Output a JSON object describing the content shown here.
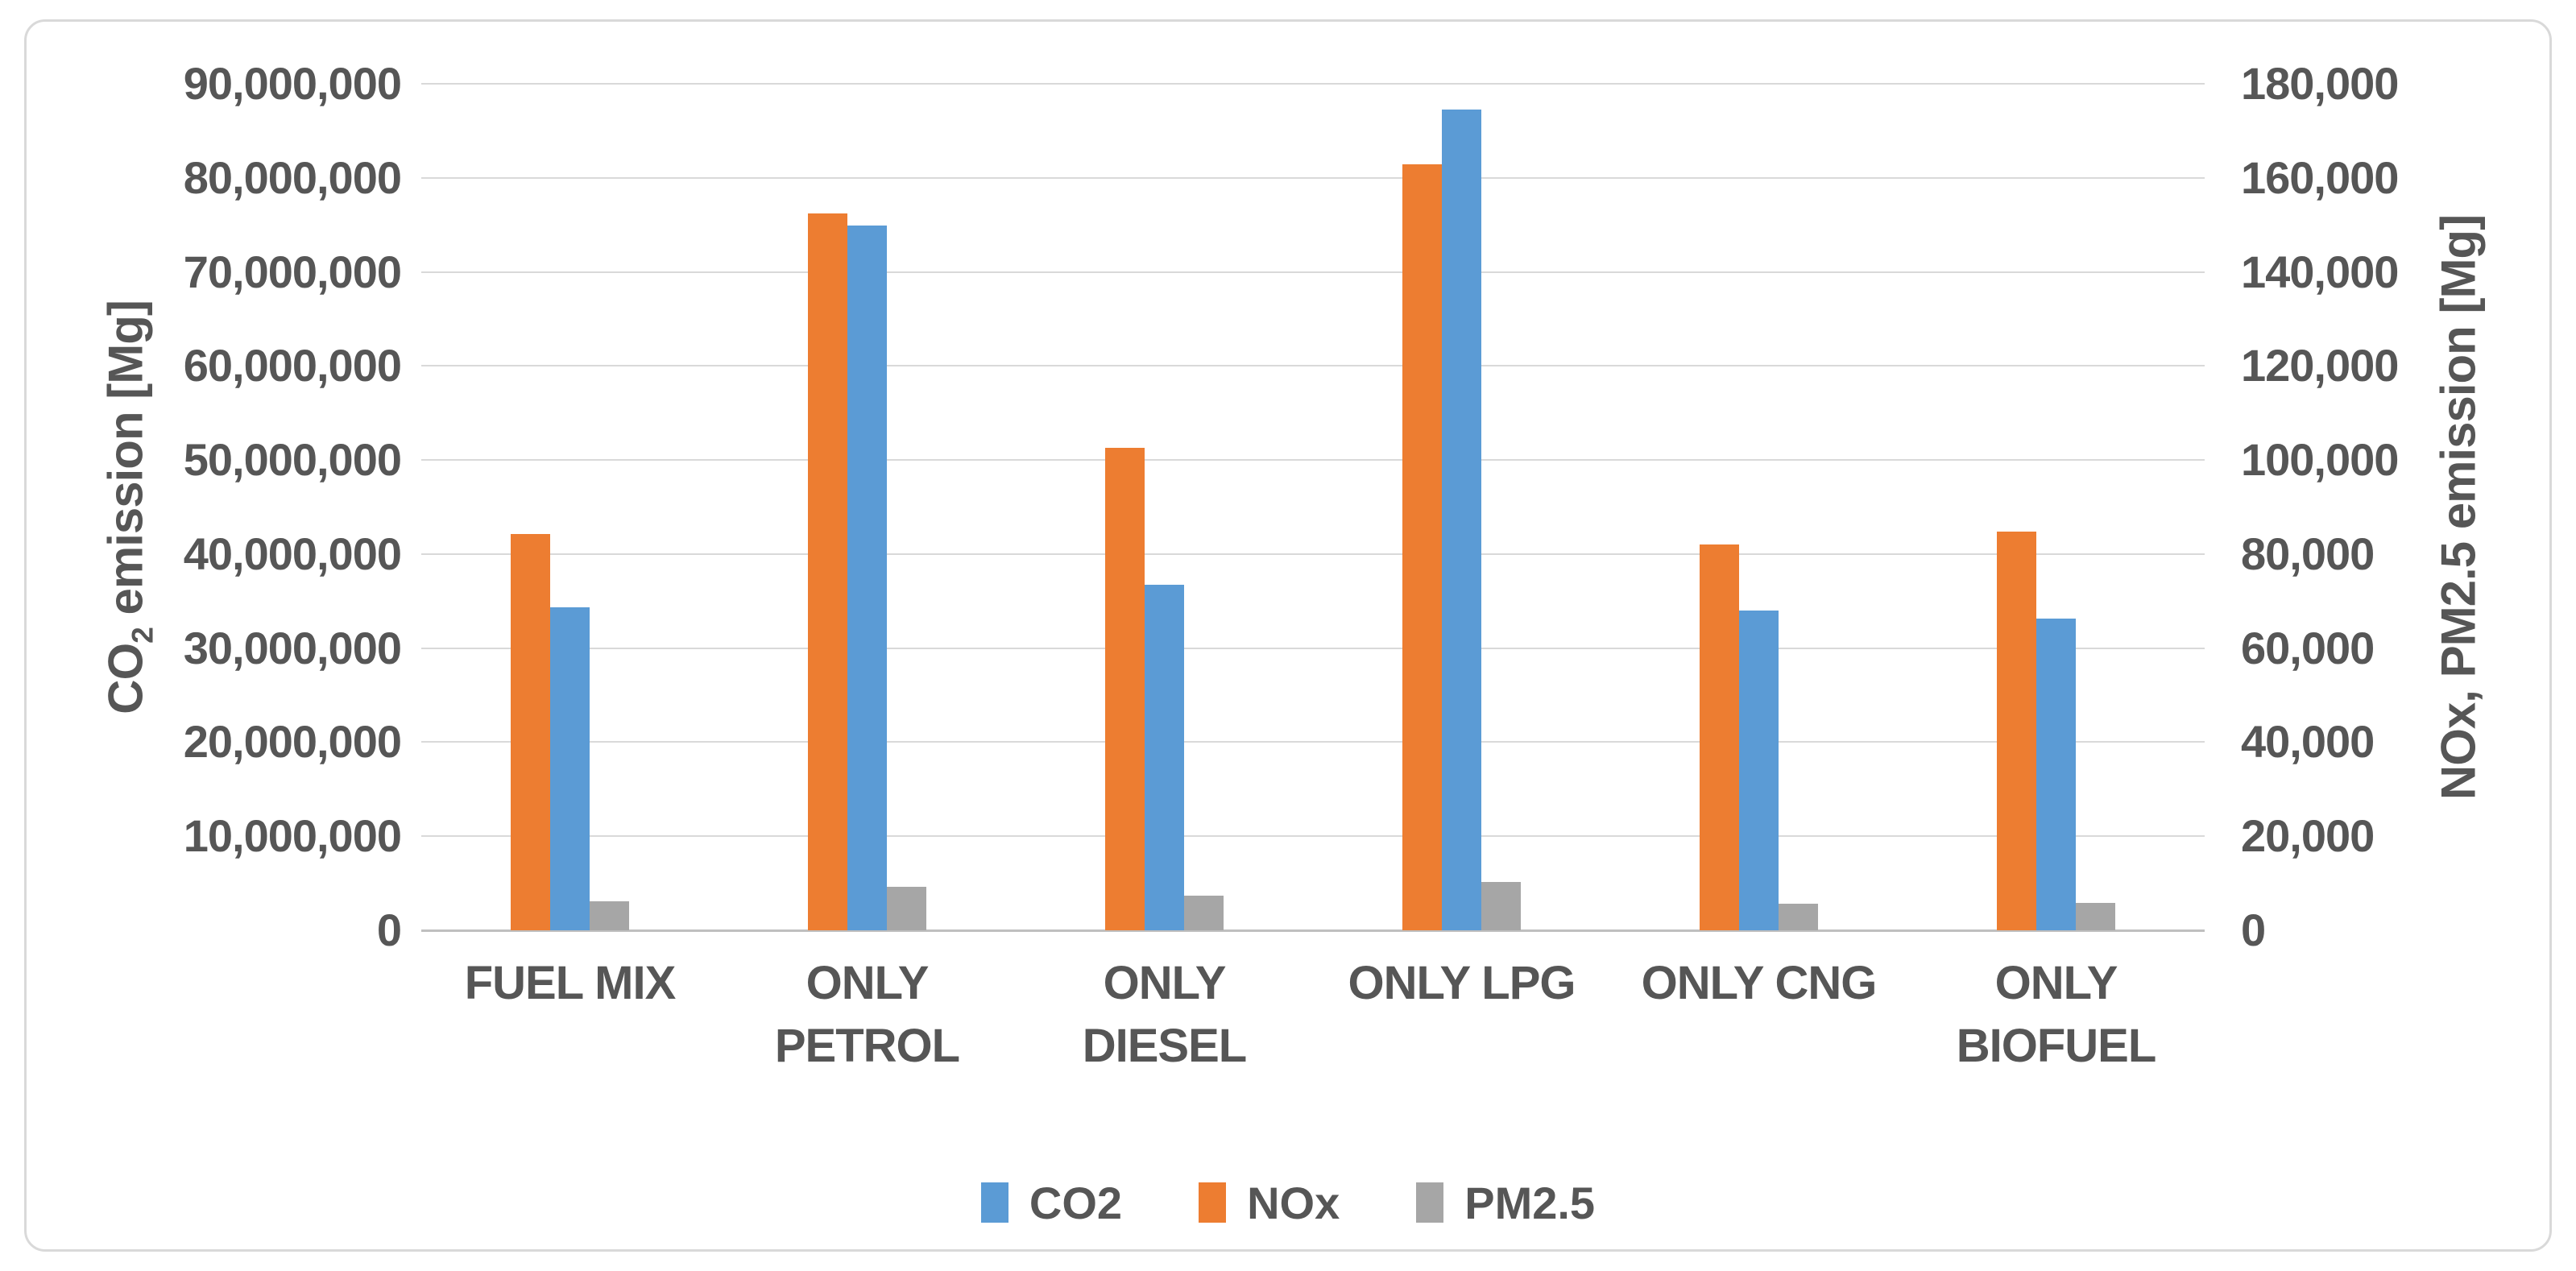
{
  "chart_data": {
    "type": "bar",
    "title": "",
    "categories": [
      {
        "lines": [
          "FUEL MIX"
        ]
      },
      {
        "lines": [
          "ONLY PETROL"
        ]
      },
      {
        "lines": [
          "ONLY DIESEL"
        ]
      },
      {
        "lines": [
          "ONLY LPG"
        ]
      },
      {
        "lines": [
          "ONLY CNG"
        ]
      },
      {
        "lines": [
          "ONLY",
          "BIOFUEL"
        ]
      }
    ],
    "series": [
      {
        "name": "CO2",
        "color": "#5b9bd5",
        "axis": "left",
        "values": [
          34300000,
          74900000,
          36700000,
          87300000,
          34000000,
          33100000
        ]
      },
      {
        "name": "NOx",
        "color": "#ed7d31",
        "axis": "right",
        "values": [
          84200,
          152400,
          102600,
          162800,
          82000,
          84800
        ]
      },
      {
        "name": "PM2.5",
        "color": "#a6a6a6",
        "axis": "right",
        "values": [
          6200,
          9200,
          7300,
          10200,
          5700,
          5900
        ]
      }
    ],
    "bar_draw_order": [
      "NOx",
      "CO2",
      "PM2.5"
    ],
    "left_axis": {
      "title_prefix": "CO",
      "title_sub": "2",
      "title_suffix": " emission [Mg]",
      "max": 90000000,
      "min": 0,
      "ticks": [
        "90,000,000",
        "80,000,000",
        "70,000,000",
        "60,000,000",
        "50,000,000",
        "40,000,000",
        "30,000,000",
        "20,000,000",
        "10,000,000",
        "0"
      ]
    },
    "right_axis": {
      "title": "NOx, PM2.5 emission [Mg]",
      "max": 180000,
      "min": 0,
      "ticks": [
        "180,000",
        "160,000",
        "140,000",
        "120,000",
        "100,000",
        "80,000",
        "60,000",
        "40,000",
        "20,000",
        "0"
      ]
    },
    "legend": {
      "position": "bottom",
      "labels": [
        "CO2",
        "NOx",
        "PM2.5"
      ]
    },
    "grid": "horizontal",
    "colors": {
      "gridline": "#d9d9d9",
      "axis_line": "#bfbfbf",
      "text": "#565656",
      "frame_border": "#d9d9d9",
      "background": "#ffffff"
    }
  }
}
